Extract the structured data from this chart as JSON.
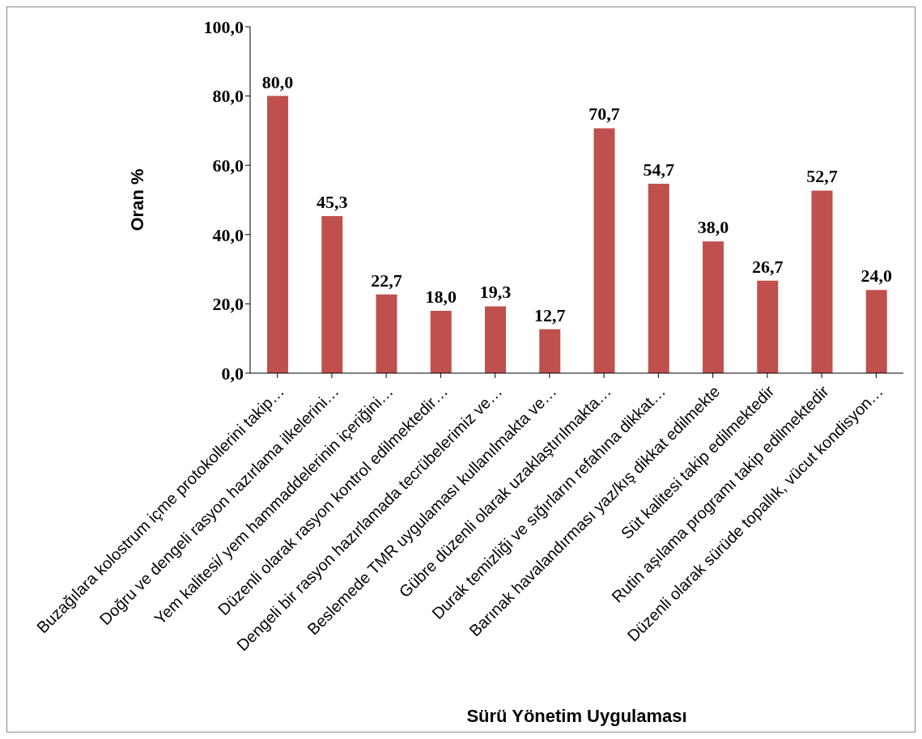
{
  "chart_data": {
    "type": "bar",
    "xlabel": "Sürü  Yönetim Uygulaması",
    "ylabel": "Oran %",
    "categories": [
      "Buzağılara kolostrum içme protokollerini takip…",
      "Doğru ve dengeli rasyon hazırlama ilkelerini…",
      "Yem kalitesi/ yem hammaddelerinin içeriğini…",
      "Düzenli olarak rasyon kontrol edilmektedir…",
      "Dengeli bir rasyon hazırlamada tecrübelerimiz ve…",
      "Beslemede TMR uygulaması kullanılmakta ve…",
      "Gübre düzenli olarak uzaklaştırılmakta…",
      "Durak temizliği ve sığırların refahına dikkat…",
      "Barınak havalandırması yaz/kış dikkat edilmekte",
      "Süt kalitesi takip edilmektedir",
      "Rutin aşılama programı takip edilmektedir",
      "Düzenli olarak sürüde topallık, vücut kondisyon…"
    ],
    "values": [
      80.0,
      45.3,
      22.7,
      18.0,
      19.3,
      12.7,
      70.7,
      54.7,
      38.0,
      26.7,
      52.7,
      24.0
    ],
    "value_labels": [
      "80,0",
      "45,3",
      "22,7",
      "18,0",
      "19,3",
      "12,7",
      "70,7",
      "54,7",
      "38,0",
      "26,7",
      "52,7",
      "24,0"
    ],
    "color": "#c0504d",
    "ylim": [
      0,
      100
    ],
    "yticks": [
      {
        "value": 0,
        "label": "0,0"
      },
      {
        "value": 20,
        "label": "20,0"
      },
      {
        "value": 40,
        "label": "40,0"
      },
      {
        "value": 60,
        "label": "60,0"
      },
      {
        "value": 80,
        "label": "80,0"
      },
      {
        "value": 100,
        "label": "100,0"
      }
    ],
    "grid": false,
    "legend": false
  }
}
